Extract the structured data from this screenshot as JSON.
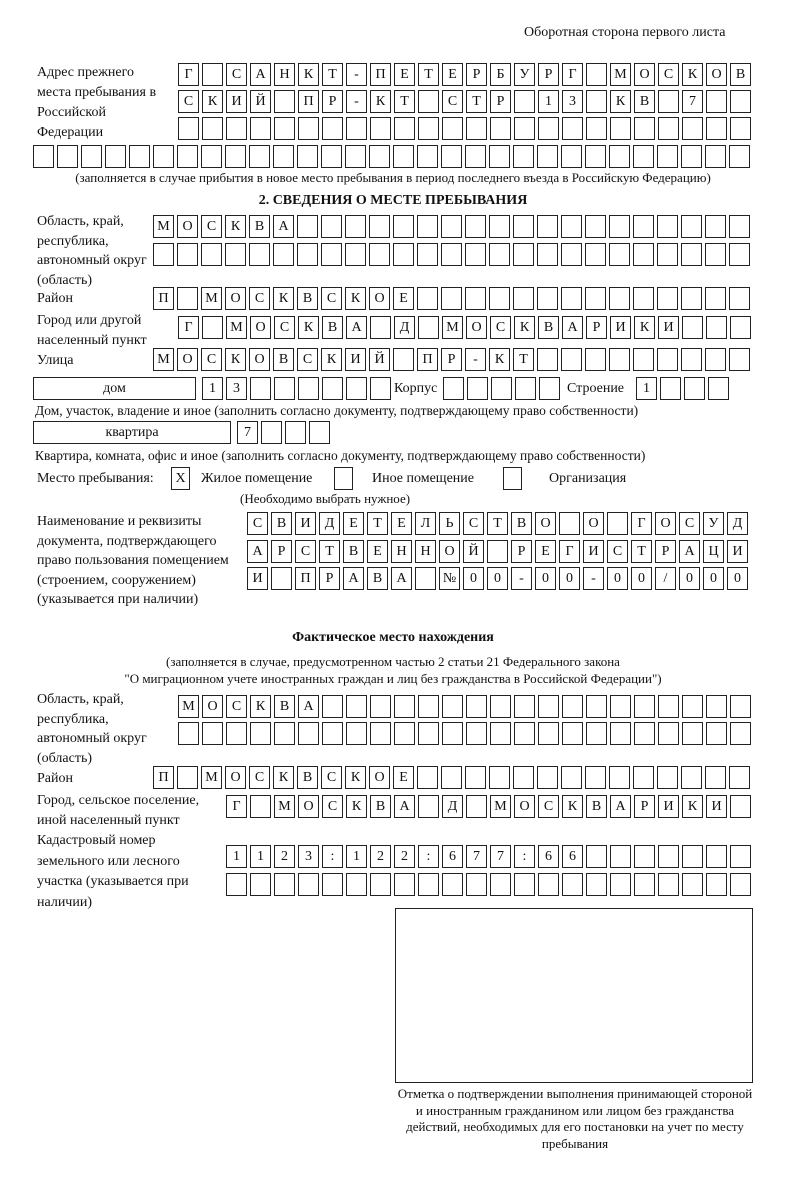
{
  "header": {
    "page_note": "Оборотная сторона первого листа"
  },
  "prev_address": {
    "label": "Адрес прежнего места пребывания в Российской Федерации",
    "rows": [
      [
        "Г",
        "",
        "С",
        "А",
        "Н",
        "К",
        "Т",
        "-",
        "П",
        "Е",
        "Т",
        "Е",
        "Р",
        "Б",
        "У",
        "Р",
        "Г",
        "",
        "М",
        "О",
        "С",
        "К",
        "О",
        "В"
      ],
      [
        "С",
        "К",
        "И",
        "Й",
        "",
        "П",
        "Р",
        "-",
        "К",
        "Т",
        "",
        "С",
        "Т",
        "Р",
        "",
        "1",
        "3",
        "",
        "К",
        "В",
        "",
        "7",
        "",
        ""
      ],
      [
        "",
        "",
        "",
        "",
        "",
        "",
        "",
        "",
        "",
        "",
        "",
        "",
        "",
        "",
        "",
        "",
        "",
        "",
        "",
        "",
        "",
        "",
        "",
        ""
      ],
      [
        "",
        "",
        "",
        "",
        "",
        "",
        "",
        "",
        "",
        "",
        "",
        "",
        "",
        "",
        "",
        "",
        "",
        "",
        "",
        "",
        "",
        "",
        "",
        "",
        "",
        "",
        "",
        "",
        "",
        ""
      ]
    ],
    "note": "(заполняется в случае прибытия в новое место пребывания в период последнего въезда в Российскую Федерацию)"
  },
  "section2": {
    "title": "2. СВЕДЕНИЯ О МЕСТЕ ПРЕБЫВАНИЯ",
    "region_label": "Область, край, республика, автономный округ (область)",
    "region_rows": [
      [
        "М",
        "О",
        "С",
        "К",
        "В",
        "А",
        "",
        "",
        "",
        "",
        "",
        "",
        "",
        "",
        "",
        "",
        "",
        "",
        "",
        "",
        "",
        "",
        "",
        "",
        ""
      ],
      [
        "",
        "",
        "",
        "",
        "",
        "",
        "",
        "",
        "",
        "",
        "",
        "",
        "",
        "",
        "",
        "",
        "",
        "",
        "",
        "",
        "",
        "",
        "",
        "",
        ""
      ]
    ],
    "district_label": "Район",
    "district": [
      "П",
      "",
      "М",
      "О",
      "С",
      "К",
      "В",
      "С",
      "К",
      "О",
      "Е",
      "",
      "",
      "",
      "",
      "",
      "",
      "",
      "",
      "",
      "",
      "",
      "",
      "",
      ""
    ],
    "city_label": "Город или другой населенный пункт",
    "city": [
      "Г",
      "",
      "М",
      "О",
      "С",
      "К",
      "В",
      "А",
      "",
      "Д",
      "",
      "М",
      "О",
      "С",
      "К",
      "В",
      "А",
      "Р",
      "И",
      "К",
      "И",
      "",
      "",
      ""
    ],
    "street_label": "Улица",
    "street": [
      "М",
      "О",
      "С",
      "К",
      "О",
      "В",
      "С",
      "К",
      "И",
      "Й",
      "",
      "П",
      "Р",
      "-",
      "К",
      "Т",
      "",
      "",
      "",
      "",
      "",
      "",
      "",
      "",
      ""
    ],
    "house_type": "дом",
    "house": [
      "1",
      "3",
      "",
      "",
      "",
      "",
      "",
      ""
    ],
    "korpus_label": "Корпус",
    "korpus": [
      "",
      "",
      "",
      "",
      ""
    ],
    "building_label": "Строение",
    "building": [
      "1",
      "",
      "",
      ""
    ],
    "house_note": "Дом, участок, владение и иное (заполнить согласно документу, подтверждающему право собственности)",
    "flat_type": "квартира",
    "flat": [
      "7",
      "",
      "",
      ""
    ],
    "flat_note": "Квартира, комната, офис и иное (заполнить согласно документу, подтверждающему право собственности)",
    "stay_label": "Место пребывания:",
    "stay_options": [
      {
        "label": "Жилое помещение",
        "mark": "X"
      },
      {
        "label": "Иное помещение",
        "mark": ""
      },
      {
        "label": "Организация",
        "mark": ""
      }
    ],
    "stay_note": "(Необходимо выбрать нужное)",
    "doc_label": "Наименование и реквизиты документа, подтверждающего право пользования помещением (строением, сооружением) (указывается при наличии)",
    "doc_rows": [
      [
        "С",
        "В",
        "И",
        "Д",
        "Е",
        "Т",
        "Е",
        "Л",
        "Ь",
        "С",
        "Т",
        "В",
        "О",
        "",
        "О",
        "",
        "Г",
        "О",
        "С",
        "У",
        "Д"
      ],
      [
        "А",
        "Р",
        "С",
        "Т",
        "В",
        "Е",
        "Н",
        "Н",
        "О",
        "Й",
        "",
        "Р",
        "Е",
        "Г",
        "И",
        "С",
        "Т",
        "Р",
        "А",
        "Ц",
        "И"
      ],
      [
        "И",
        "",
        "П",
        "Р",
        "А",
        "В",
        "А",
        "",
        "№",
        "0",
        "0",
        "-",
        "0",
        "0",
        "-",
        "0",
        "0",
        "/",
        "0",
        "0",
        "0"
      ]
    ]
  },
  "actual": {
    "title": "Фактическое место нахождения",
    "note1": "(заполняется в случае, предусмотренном частью 2 статьи 21 Федерального закона",
    "note2": "\"О миграционном учете иностранных граждан и лиц без гражданства в Российской Федерации\")",
    "region_label": "Область, край, республика, автономный округ (область)",
    "region_rows": [
      [
        "М",
        "О",
        "С",
        "К",
        "В",
        "А",
        "",
        "",
        "",
        "",
        "",
        "",
        "",
        "",
        "",
        "",
        "",
        "",
        "",
        "",
        "",
        "",
        "",
        ""
      ],
      [
        "",
        "",
        "",
        "",
        "",
        "",
        "",
        "",
        "",
        "",
        "",
        "",
        "",
        "",
        "",
        "",
        "",
        "",
        "",
        "",
        "",
        "",
        "",
        ""
      ]
    ],
    "district_label": "Район",
    "district": [
      "П",
      "",
      "М",
      "О",
      "С",
      "К",
      "В",
      "С",
      "К",
      "О",
      "Е",
      "",
      "",
      "",
      "",
      "",
      "",
      "",
      "",
      "",
      "",
      "",
      "",
      "",
      ""
    ],
    "city_label": "Город, сельское поселение, иной населенный пункт",
    "city": [
      "Г",
      "",
      "М",
      "О",
      "С",
      "К",
      "В",
      "А",
      "",
      "Д",
      "",
      "М",
      "О",
      "С",
      "К",
      "В",
      "А",
      "Р",
      "И",
      "К",
      "И",
      ""
    ],
    "cadastre_label": "Кадастровый номер земельного или лесного участка (указывается при наличии)",
    "cadastre_rows": [
      [
        "1",
        "1",
        "2",
        "3",
        ":",
        "1",
        "2",
        "2",
        ":",
        "6",
        "7",
        "7",
        ":",
        "6",
        "6",
        "",
        "",
        "",
        "",
        "",
        "",
        ""
      ],
      [
        "",
        "",
        "",
        "",
        "",
        "",
        "",
        "",
        "",
        "",
        "",
        "",
        "",
        "",
        "",
        "",
        "",
        "",
        "",
        "",
        "",
        ""
      ]
    ]
  },
  "stamp": {
    "caption": "Отметка о подтверждении выполнения принимающей стороной и иностранным гражданином или лицом без гражданства действий, необходимых для его постановки на учет по месту пребывания"
  }
}
